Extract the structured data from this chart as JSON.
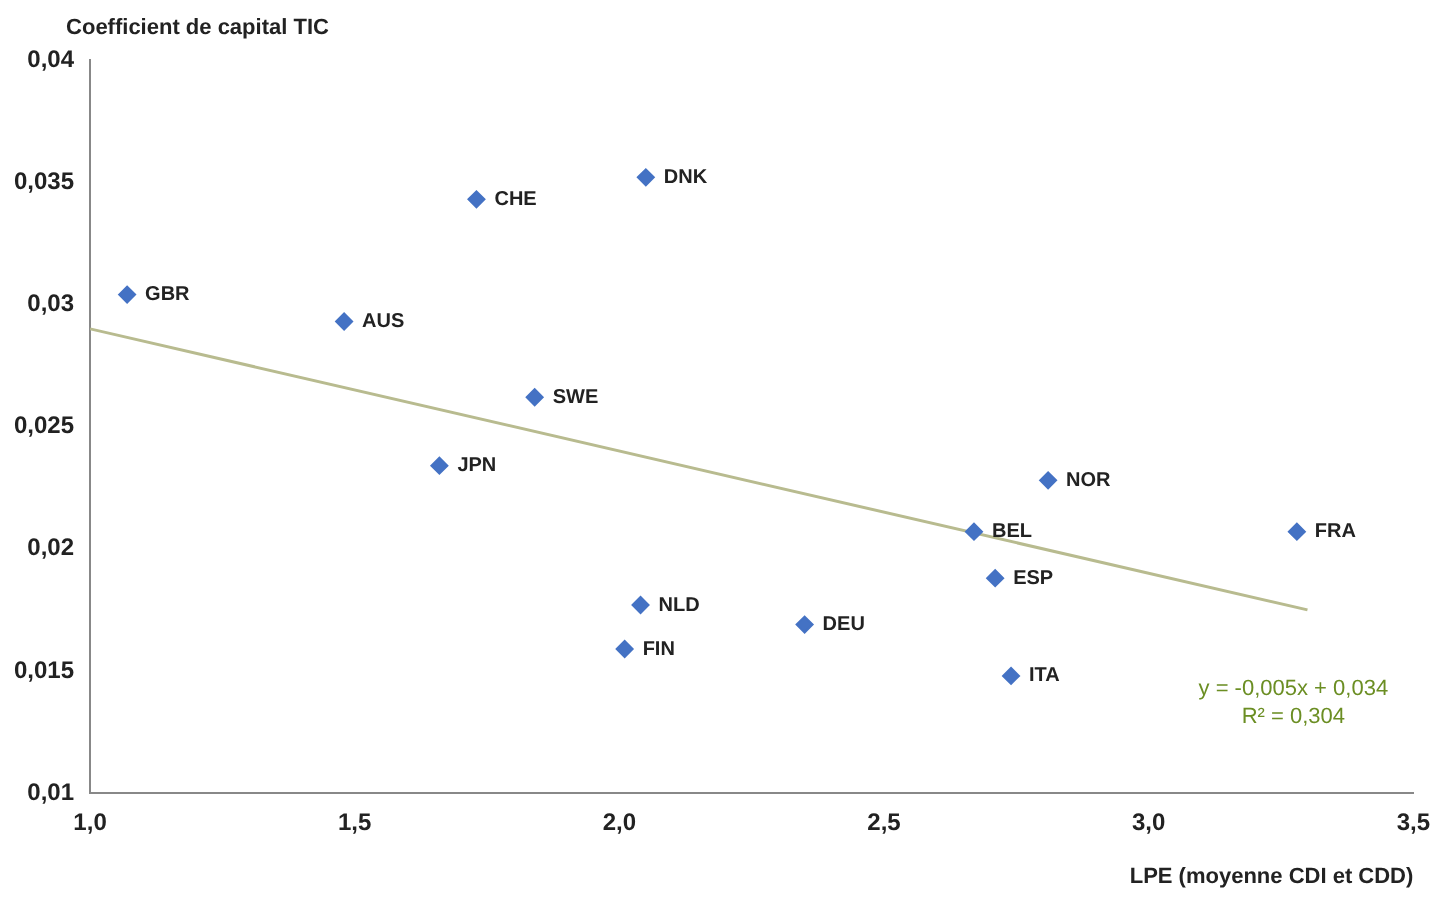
{
  "chart_data": {
    "type": "scatter",
    "ylabel": "Coefficient de capital TIC",
    "xlabel": "LPE (moyenne CDI et CDD)",
    "series": [
      {
        "type": "scatter",
        "marker": "diamond",
        "color": "#4472c4",
        "x": [
          1.07,
          1.48,
          1.73,
          2.05,
          1.84,
          1.66,
          2.04,
          2.01,
          2.35,
          2.67,
          2.71,
          2.81,
          3.28,
          2.74
        ],
        "values": [
          0.0304,
          0.0293,
          0.0343,
          0.0352,
          0.0262,
          0.0234,
          0.0177,
          0.0159,
          0.0169,
          0.0207,
          0.0188,
          0.0228,
          0.0207,
          0.0148
        ]
      },
      {
        "type": "line",
        "marker": "none",
        "color": "#b8bb8f",
        "x": [
          1.0,
          3.3
        ],
        "values": [
          0.029,
          0.0175
        ]
      }
    ],
    "grid": false,
    "legend": false,
    "xlim": [
      1.0,
      3.5
    ],
    "ylim": [
      0.01,
      0.04
    ],
    "xticks": [
      {
        "value": 1.0,
        "label": "1,0"
      },
      {
        "value": 1.5,
        "label": "1,5"
      },
      {
        "value": 2.0,
        "label": "2,0"
      },
      {
        "value": 2.5,
        "label": "2,5"
      },
      {
        "value": 3.0,
        "label": "3,0"
      },
      {
        "value": 3.5,
        "label": "3,5"
      }
    ],
    "yticks": [
      {
        "value": 0.01,
        "label": "0,01"
      },
      {
        "value": 0.015,
        "label": "0,015"
      },
      {
        "value": 0.02,
        "label": "0,02"
      },
      {
        "value": 0.025,
        "label": "0,025"
      },
      {
        "value": 0.03,
        "label": "0,03"
      },
      {
        "value": 0.035,
        "label": "0,035"
      },
      {
        "value": 0.04,
        "label": "0,04"
      }
    ],
    "annotations": [
      {
        "text": "GBR",
        "x": 1.07,
        "y": 0.0304
      },
      {
        "text": "AUS",
        "x": 1.48,
        "y": 0.0293
      },
      {
        "text": "CHE",
        "x": 1.73,
        "y": 0.0343
      },
      {
        "text": "DNK",
        "x": 2.05,
        "y": 0.0352
      },
      {
        "text": "SWE",
        "x": 1.84,
        "y": 0.0262
      },
      {
        "text": "JPN",
        "x": 1.66,
        "y": 0.0234
      },
      {
        "text": "NLD",
        "x": 2.04,
        "y": 0.0177
      },
      {
        "text": "FIN",
        "x": 2.01,
        "y": 0.0159
      },
      {
        "text": "DEU",
        "x": 2.35,
        "y": 0.0169
      },
      {
        "text": "BEL",
        "x": 2.67,
        "y": 0.0207
      },
      {
        "text": "ESP",
        "x": 2.71,
        "y": 0.0188
      },
      {
        "text": "NOR",
        "x": 2.81,
        "y": 0.0228
      },
      {
        "text": "FRA",
        "x": 3.28,
        "y": 0.0207
      },
      {
        "text": "ITA",
        "x": 2.74,
        "y": 0.0148
      },
      "y = -0,005x + 0,034",
      "R² = 0,304"
    ]
  }
}
